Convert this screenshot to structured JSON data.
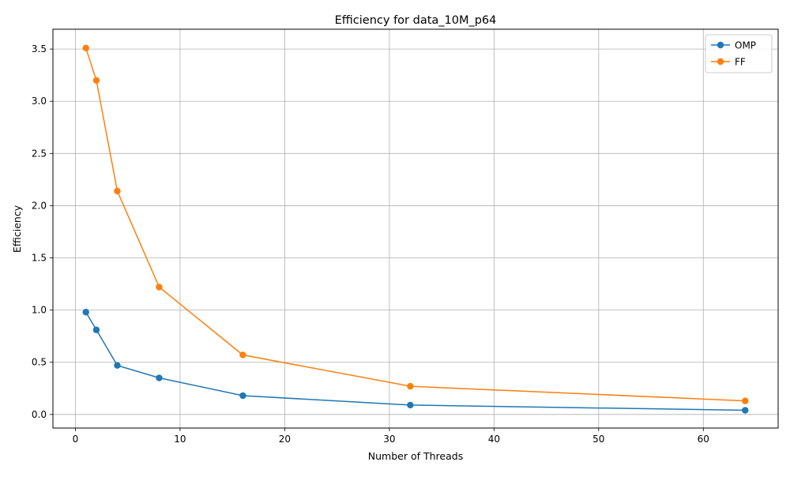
{
  "chart_data": {
    "type": "line",
    "title": "Efficiency for data_10M_p64",
    "xlabel": "Number of Threads",
    "ylabel": "Efficiency",
    "xlim": [
      -2.15,
      67.15
    ],
    "ylim": [
      -0.13,
      3.69
    ],
    "xticks": [
      0,
      10,
      20,
      30,
      40,
      50,
      60
    ],
    "xtick_labels": [
      "0",
      "10",
      "20",
      "30",
      "40",
      "50",
      "60"
    ],
    "yticks": [
      0.0,
      0.5,
      1.0,
      1.5,
      2.0,
      2.5,
      3.0,
      3.5
    ],
    "ytick_labels": [
      "0.0",
      "0.5",
      "1.0",
      "1.5",
      "2.0",
      "2.5",
      "3.0",
      "3.5"
    ],
    "grid": true,
    "legend_position": "top-right",
    "x": [
      1,
      2,
      4,
      8,
      16,
      32,
      64
    ],
    "series": [
      {
        "name": "OMP",
        "color": "#1f77b4",
        "values": [
          0.98,
          0.81,
          0.47,
          0.35,
          0.18,
          0.09,
          0.04
        ]
      },
      {
        "name": "FF",
        "color": "#ff7f0e",
        "values": [
          3.51,
          3.2,
          2.14,
          1.22,
          0.57,
          0.27,
          0.13
        ]
      }
    ]
  }
}
